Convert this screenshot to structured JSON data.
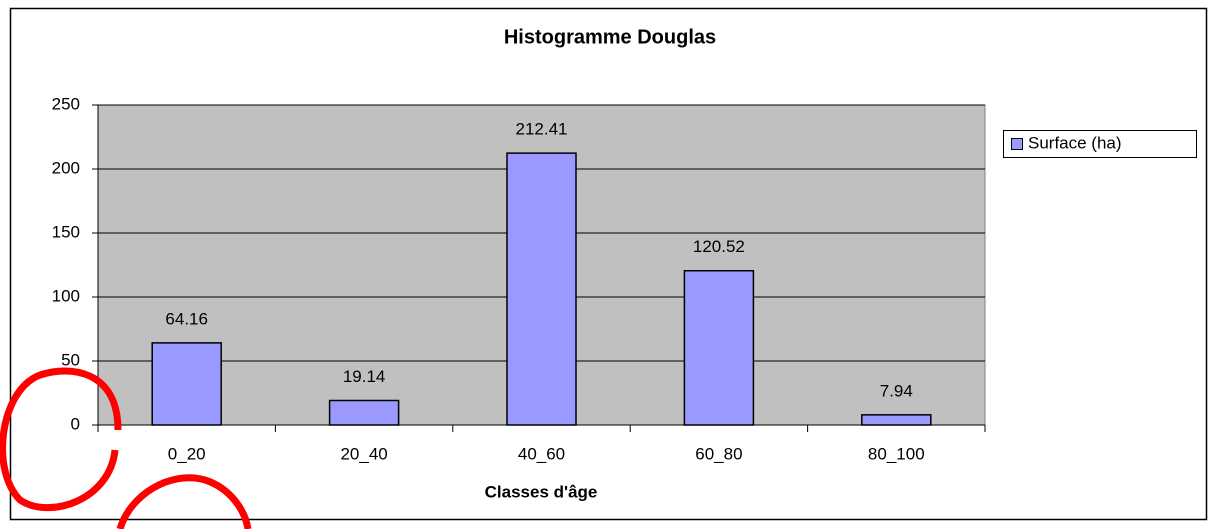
{
  "chart_data": {
    "type": "bar",
    "title": "Histogramme Douglas",
    "x_label": "Classes d'âge",
    "categories": [
      "0_20",
      "20_40",
      "40_60",
      "60_80",
      "80_100"
    ],
    "series": [
      {
        "name": "Surface (ha)",
        "color": "#9999ff",
        "values": [
          64.16,
          19.14,
          212.41,
          120.52,
          7.94
        ]
      }
    ],
    "ylim": [
      0,
      250
    ],
    "yticks": [
      0,
      50,
      100,
      150,
      200,
      250
    ],
    "grid": true,
    "legend": "right"
  }
}
